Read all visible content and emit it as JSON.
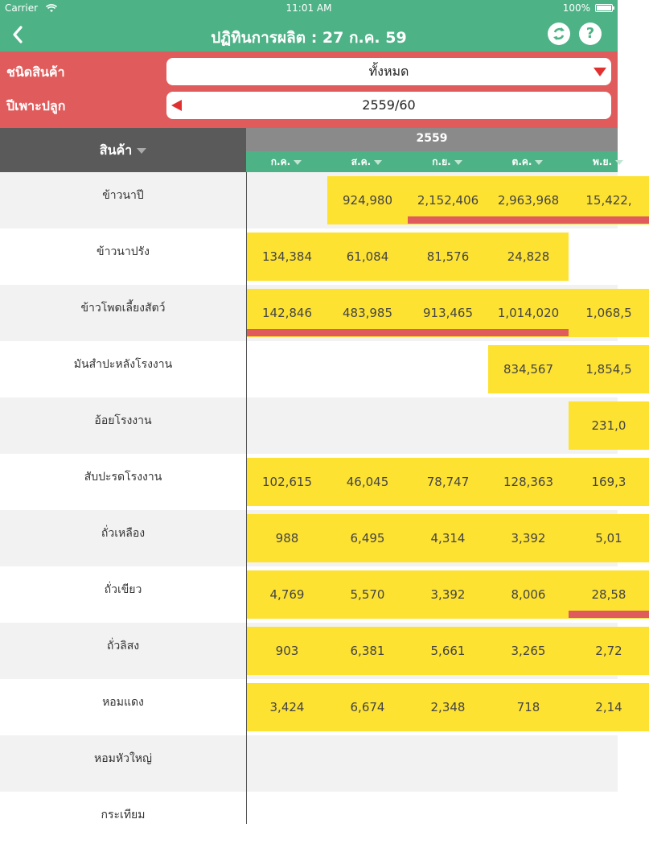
{
  "status_bar": {
    "carrier": "Carrier",
    "time": "11:01 AM",
    "battery": "100%"
  },
  "nav": {
    "title": "ปฏิทินการผลิต : 27 ก.ค. 59",
    "help_glyph": "?",
    "back_icon": "chevron-left-icon",
    "refresh_icon": "refresh-icon"
  },
  "filters": {
    "product_type_label": "ชนิดสินค้า",
    "product_type_value": "ทั้งหมด",
    "crop_year_label": "ปีเพาะปลูก",
    "crop_year_value": "2559/60"
  },
  "table": {
    "product_header": "สินค้า",
    "year": "2559",
    "months": [
      "ก.ค.",
      "ส.ค.",
      "ก.ย.",
      "ต.ค.",
      "พ.ย."
    ],
    "rows": [
      {
        "name": "ข้าวนาปี",
        "values": [
          "",
          "924,980",
          "2,152,406",
          "2,963,968",
          "15,422,"
        ]
      },
      {
        "name": "ข้าวนาปรัง",
        "values": [
          "134,384",
          "61,084",
          "81,576",
          "24,828",
          ""
        ]
      },
      {
        "name": "ข้าวโพดเลี้ยงสัตว์",
        "values": [
          "142,846",
          "483,985",
          "913,465",
          "1,014,020",
          "1,068,5"
        ]
      },
      {
        "name": "มันสำปะหลังโรงงาน",
        "values": [
          "",
          "",
          "",
          "834,567",
          "1,854,5"
        ]
      },
      {
        "name": "อ้อยโรงงาน",
        "values": [
          "",
          "",
          "",
          "",
          "231,0"
        ]
      },
      {
        "name": "สับปะรดโรงงาน",
        "values": [
          "102,615",
          "46,045",
          "78,747",
          "128,363",
          "169,3"
        ]
      },
      {
        "name": "ถั่วเหลือง",
        "values": [
          "988",
          "6,495",
          "4,314",
          "3,392",
          "5,01"
        ]
      },
      {
        "name": "ถั่วเขียว",
        "values": [
          "4,769",
          "5,570",
          "3,392",
          "8,006",
          "28,58"
        ]
      },
      {
        "name": "ถั่วลิสง",
        "values": [
          "903",
          "6,381",
          "5,661",
          "3,265",
          "2,72"
        ]
      },
      {
        "name": "หอมแดง",
        "values": [
          "3,424",
          "6,674",
          "2,348",
          "718",
          "2,14"
        ]
      },
      {
        "name": "หอมหัวใหญ่",
        "values": [
          "",
          "",
          "",
          "",
          ""
        ]
      },
      {
        "name": "กระเทียม",
        "values": [
          "",
          "",
          "",
          "",
          ""
        ]
      }
    ],
    "harvest_markers": [
      {
        "row": 0,
        "from_month": 2,
        "to_month": 4
      },
      {
        "row": 2,
        "from_month": 0,
        "to_month": 3
      },
      {
        "row": 7,
        "from_month": 4,
        "to_month": 4
      }
    ]
  },
  "colors": {
    "green": "#4db286",
    "red": "#e05c5c",
    "yellow": "#fde232",
    "dark_header": "#5a5a5a",
    "year_header": "#8a8a8a"
  }
}
